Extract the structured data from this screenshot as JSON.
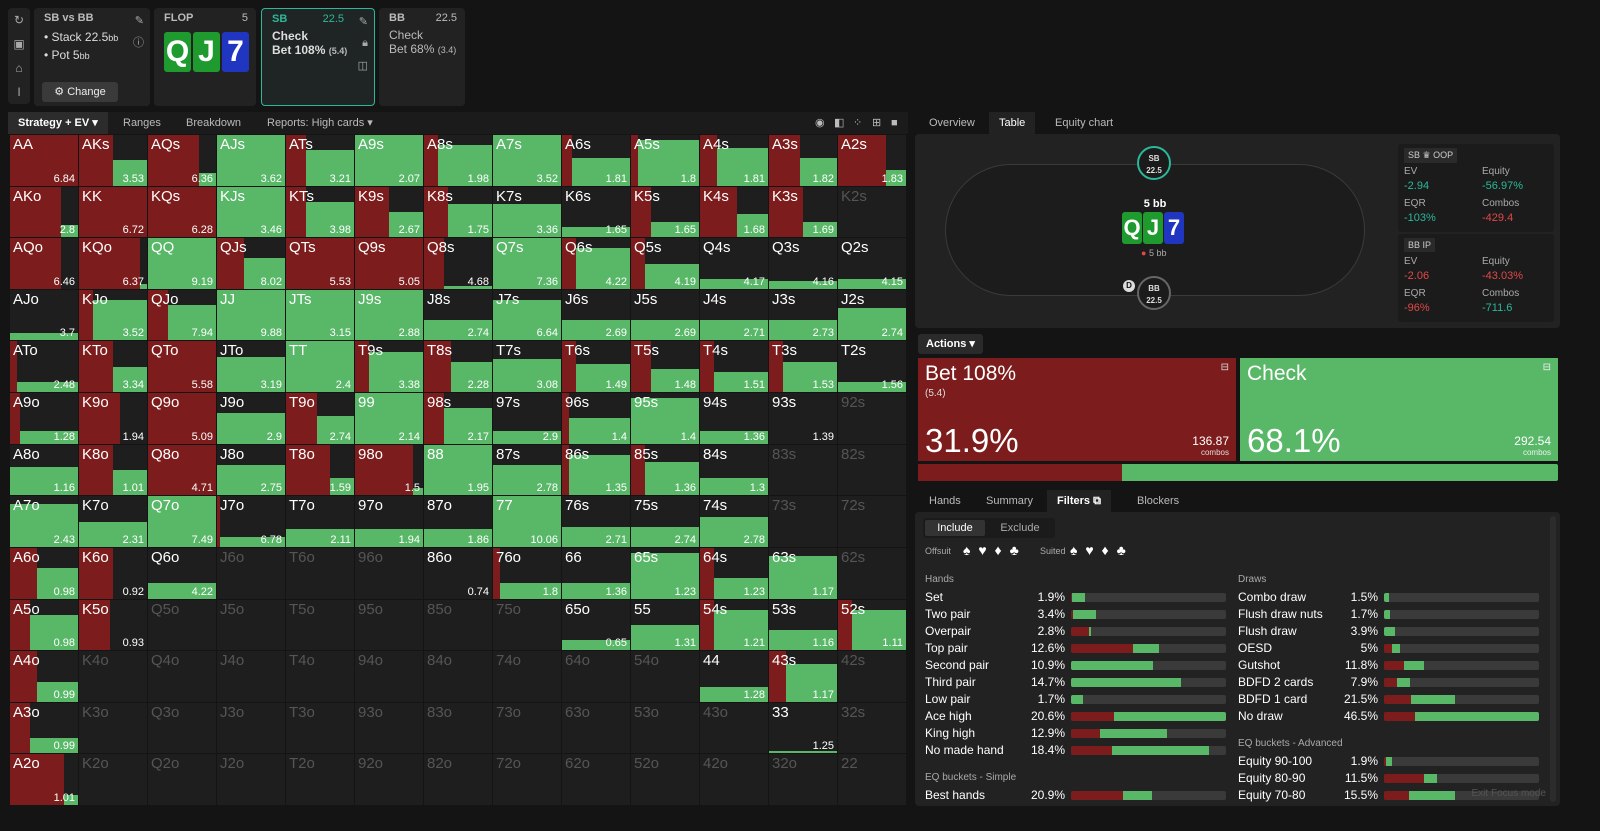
{
  "sidebar": {
    "icons": [
      "refresh-icon",
      "save-icon",
      "gamepad-icon",
      "format-icon"
    ]
  },
  "spot": {
    "title": "SB vs BB",
    "stack": "Stack 22.5",
    "stack_unit": "bb",
    "pot": "Pot 5",
    "pot_unit": "bb",
    "change": "Change"
  },
  "flop": {
    "title": "FLOP",
    "value": "5",
    "cards": [
      {
        "rank": "Q",
        "color": "#1e9a2e"
      },
      {
        "rank": "J",
        "color": "#1e9a2e"
      },
      {
        "rank": "7",
        "color": "#2036c0"
      }
    ]
  },
  "sb": {
    "title": "SB",
    "value": "22.5",
    "line1": "Check",
    "line2": "Bet 108%",
    "line2b": "(5.4)"
  },
  "bb": {
    "title": "BB",
    "value": "22.5",
    "line1": "Check",
    "line2": "Bet 68%",
    "line2b": "(3.4)"
  },
  "leftTabs": {
    "strategy": "Strategy + EV",
    "ranges": "Ranges",
    "breakdown": "Breakdown",
    "reports": "Reports: High cards"
  },
  "rightTabs": {
    "overview": "Overview",
    "table": "Table",
    "equity": "Equity chart"
  },
  "colors": {
    "bet": "#7d1c1c",
    "check": "#58b868",
    "empty": "#1e1e1e"
  },
  "grid": [
    [
      [
        "AA",
        1,
        0,
        "6.84"
      ],
      [
        "AKs",
        0.5,
        0.5,
        "3.53"
      ],
      [
        "AQs",
        0.75,
        0.25,
        "6.36"
      ],
      [
        "AJs",
        0,
        1,
        "3.62"
      ],
      [
        "ATs",
        0.3,
        0.7,
        "3.21"
      ],
      [
        "A9s",
        0,
        1,
        "2.07"
      ],
      [
        "A8s",
        0.2,
        0.8,
        "1.98"
      ],
      [
        "A7s",
        0,
        1,
        "3.52"
      ],
      [
        "A6s",
        0.15,
        0.55,
        "1.81"
      ],
      [
        "A5s",
        0.1,
        0.9,
        "1.8"
      ],
      [
        "A4s",
        0.25,
        0.75,
        "1.81"
      ],
      [
        "A3s",
        0.45,
        0.55,
        "1.82"
      ],
      [
        "A2s",
        0.7,
        0.3,
        "1.83"
      ]
    ],
    [
      [
        "AKo",
        0.75,
        0.25,
        "2.8"
      ],
      [
        "KK",
        1,
        0,
        "6.72"
      ],
      [
        "KQs",
        1,
        0,
        "6.28"
      ],
      [
        "KJs",
        0,
        1,
        "3.46"
      ],
      [
        "KTs",
        0.3,
        0.7,
        "3.98"
      ],
      [
        "K9s",
        0.5,
        0.5,
        "2.67"
      ],
      [
        "K8s",
        0.35,
        0.65,
        "1.75"
      ],
      [
        "K7s",
        0,
        0.65,
        "3.36"
      ],
      [
        "K6s",
        0,
        0.2,
        "1.65"
      ],
      [
        "K5s",
        0.3,
        0.3,
        "1.65"
      ],
      [
        "K4s",
        0.55,
        0.45,
        "1.68"
      ],
      [
        "K3s",
        0.5,
        0.3,
        "1.69"
      ],
      [
        "K2s",
        0,
        0,
        ""
      ]
    ],
    [
      [
        "AQo",
        0.75,
        0,
        "6.46"
      ],
      [
        "KQo",
        0.9,
        0.1,
        "6.37"
      ],
      [
        "QQ",
        0,
        1,
        "9.19"
      ],
      [
        "QJs",
        0.4,
        0.6,
        "8.02"
      ],
      [
        "QTs",
        1,
        0,
        "5.53"
      ],
      [
        "Q9s",
        1,
        0,
        "5.05"
      ],
      [
        "Q8s",
        0.3,
        0.05,
        "4.68"
      ],
      [
        "Q7s",
        0,
        1,
        "7.36"
      ],
      [
        "Q6s",
        0.2,
        0.8,
        "4.22"
      ],
      [
        "Q5s",
        0.2,
        0.5,
        "4.19"
      ],
      [
        "Q4s",
        0,
        0.2,
        "4.17"
      ],
      [
        "Q3s",
        0,
        0.15,
        "4.16"
      ],
      [
        "Q2s",
        0,
        0.2,
        "4.15"
      ]
    ],
    [
      [
        "AJo",
        0,
        0.15,
        "3.7"
      ],
      [
        "KJo",
        0.2,
        0.8,
        "3.52"
      ],
      [
        "QJo",
        0.3,
        0.7,
        "7.94"
      ],
      [
        "JJ",
        0,
        1,
        "9.88"
      ],
      [
        "JTs",
        0,
        1,
        "3.15"
      ],
      [
        "J9s",
        0,
        1,
        "2.88"
      ],
      [
        "J8s",
        0,
        0.4,
        "2.74"
      ],
      [
        "J7s",
        0,
        0.8,
        "6.64"
      ],
      [
        "J6s",
        0,
        0.4,
        "2.69"
      ],
      [
        "J5s",
        0,
        0.4,
        "2.69"
      ],
      [
        "J4s",
        0,
        0.4,
        "2.71"
      ],
      [
        "J3s",
        0,
        0.4,
        "2.73"
      ],
      [
        "J2s",
        0,
        0.65,
        "2.74"
      ]
    ],
    [
      [
        "ATo",
        0.1,
        0.2,
        "2.48"
      ],
      [
        "KTo",
        0.5,
        0.5,
        "3.34"
      ],
      [
        "QTo",
        1,
        0,
        "5.58"
      ],
      [
        "JTo",
        0,
        0.7,
        "3.19"
      ],
      [
        "TT",
        0,
        1,
        "2.4"
      ],
      [
        "T9s",
        0.2,
        0.8,
        "3.38"
      ],
      [
        "T8s",
        0.4,
        0.6,
        "2.28"
      ],
      [
        "T7s",
        0,
        0.65,
        "3.08"
      ],
      [
        "T6s",
        0.2,
        0.55,
        "1.49"
      ],
      [
        "T5s",
        0.3,
        0.45,
        "1.48"
      ],
      [
        "T4s",
        0.2,
        0.4,
        "1.51"
      ],
      [
        "T3s",
        0.2,
        0.6,
        "1.53"
      ],
      [
        "T2s",
        0,
        0.2,
        "1.56"
      ]
    ],
    [
      [
        "A9o",
        0.15,
        0.25,
        "1.28"
      ],
      [
        "K9o",
        0.6,
        0,
        "1.94"
      ],
      [
        "Q9o",
        1,
        0,
        "5.09"
      ],
      [
        "J9o",
        0,
        0.6,
        "2.9"
      ],
      [
        "T9o",
        0.45,
        0.55,
        "2.74"
      ],
      [
        "99",
        0,
        1,
        "2.14"
      ],
      [
        "98s",
        0.3,
        0.7,
        "2.17"
      ],
      [
        "97s",
        0,
        0.25,
        "2.9"
      ],
      [
        "96s",
        0.1,
        0.5,
        "1.4"
      ],
      [
        "95s",
        0,
        0.9,
        "1.4"
      ],
      [
        "94s",
        0,
        0.25,
        "1.36"
      ],
      [
        "93s",
        0,
        0,
        "1.39"
      ],
      [
        "92s",
        0,
        0,
        ""
      ]
    ],
    [
      [
        "A8o",
        0,
        0.55,
        "1.16"
      ],
      [
        "K8o",
        0.5,
        0.5,
        "1.01"
      ],
      [
        "Q8o",
        1,
        0,
        "4.71"
      ],
      [
        "J8o",
        0,
        0.6,
        "2.75"
      ],
      [
        "T8o",
        0.65,
        0.35,
        "1.59"
      ],
      [
        "98o",
        0.85,
        0.15,
        "1.5"
      ],
      [
        "88",
        0,
        1,
        "1.95"
      ],
      [
        "87s",
        0,
        0.6,
        "2.78"
      ],
      [
        "86s",
        0.1,
        0.8,
        "1.35"
      ],
      [
        "85s",
        0.2,
        0.65,
        "1.36"
      ],
      [
        "84s",
        0,
        0.35,
        "1.3"
      ],
      [
        "83s",
        0,
        0,
        ""
      ],
      [
        "82s",
        0,
        0,
        ""
      ]
    ],
    [
      [
        "A7o",
        0,
        0.85,
        "2.43"
      ],
      [
        "K7o",
        0,
        0.5,
        "2.31"
      ],
      [
        "Q7o",
        0,
        1,
        "7.49"
      ],
      [
        "J7o",
        0.05,
        0.2,
        "6.78"
      ],
      [
        "T7o",
        0,
        0.35,
        "2.11"
      ],
      [
        "97o",
        0,
        0.35,
        "1.94"
      ],
      [
        "87o",
        0,
        0.35,
        "1.86"
      ],
      [
        "77",
        0,
        1,
        "10.06"
      ],
      [
        "76s",
        0,
        0.4,
        "2.71"
      ],
      [
        "75s",
        0,
        0.4,
        "2.74"
      ],
      [
        "74s",
        0,
        0.6,
        "2.78"
      ],
      [
        "73s",
        0,
        0,
        ""
      ],
      [
        "72s",
        0,
        0,
        ""
      ]
    ],
    [
      [
        "A6o",
        0.4,
        0.6,
        "0.98"
      ],
      [
        "K6o",
        0.5,
        0,
        "0.92"
      ],
      [
        "Q6o",
        0,
        0.3,
        "4.22"
      ],
      [
        "J6o",
        0,
        0,
        ""
      ],
      [
        "T6o",
        0,
        0,
        ""
      ],
      [
        "96o",
        0,
        0,
        ""
      ],
      [
        "86o",
        0,
        0,
        "0.74"
      ],
      [
        "76o",
        0.1,
        0.3,
        "1.8"
      ],
      [
        "66",
        0,
        0.3,
        "1.36"
      ],
      [
        "65s",
        0,
        0.9,
        "1.23"
      ],
      [
        "64s",
        0.2,
        0.4,
        "1.23"
      ],
      [
        "63s",
        0,
        0.85,
        "1.17"
      ],
      [
        "62s",
        0,
        0,
        ""
      ]
    ],
    [
      [
        "A5o",
        0.3,
        0.7,
        "0.98"
      ],
      [
        "K5o",
        0.45,
        0,
        "0.93"
      ],
      [
        "Q5o",
        0,
        0,
        ""
      ],
      [
        "J5o",
        0,
        0,
        ""
      ],
      [
        "T5o",
        0,
        0,
        ""
      ],
      [
        "95o",
        0,
        0,
        ""
      ],
      [
        "85o",
        0,
        0,
        ""
      ],
      [
        "75o",
        0,
        0,
        ""
      ],
      [
        "65o",
        0,
        0.2,
        "0.65"
      ],
      [
        "55",
        0,
        0.5,
        "1.31"
      ],
      [
        "54s",
        0.2,
        0.8,
        "1.21"
      ],
      [
        "53s",
        0,
        0.4,
        "1.16"
      ],
      [
        "52s",
        0.2,
        0.8,
        "1.11"
      ]
    ],
    [
      [
        "A4o",
        0.4,
        0.4,
        "0.99"
      ],
      [
        "K4o",
        0,
        0,
        ""
      ],
      [
        "Q4o",
        0,
        0,
        ""
      ],
      [
        "J4o",
        0,
        0,
        ""
      ],
      [
        "T4o",
        0,
        0,
        ""
      ],
      [
        "94o",
        0,
        0,
        ""
      ],
      [
        "84o",
        0,
        0,
        ""
      ],
      [
        "74o",
        0,
        0,
        ""
      ],
      [
        "64o",
        0,
        0,
        ""
      ],
      [
        "54o",
        0,
        0,
        ""
      ],
      [
        "44",
        0,
        0.3,
        "1.28"
      ],
      [
        "43s",
        0.25,
        0.75,
        "1.17"
      ],
      [
        "42s",
        0,
        0,
        ""
      ]
    ],
    [
      [
        "A3o",
        0.3,
        0.3,
        "0.99"
      ],
      [
        "K3o",
        0,
        0,
        ""
      ],
      [
        "Q3o",
        0,
        0,
        ""
      ],
      [
        "J3o",
        0,
        0,
        ""
      ],
      [
        "T3o",
        0,
        0,
        ""
      ],
      [
        "93o",
        0,
        0,
        ""
      ],
      [
        "83o",
        0,
        0,
        ""
      ],
      [
        "73o",
        0,
        0,
        ""
      ],
      [
        "63o",
        0,
        0,
        ""
      ],
      [
        "53o",
        0,
        0,
        ""
      ],
      [
        "43o",
        0,
        0,
        ""
      ],
      [
        "33",
        0,
        0.05,
        "1.25"
      ],
      [
        "32s",
        0,
        0,
        ""
      ]
    ],
    [
      [
        "A2o",
        0.8,
        0.2,
        "1.01"
      ],
      [
        "K2o",
        0,
        0,
        ""
      ],
      [
        "Q2o",
        0,
        0,
        ""
      ],
      [
        "J2o",
        0,
        0,
        ""
      ],
      [
        "T2o",
        0,
        0,
        ""
      ],
      [
        "92o",
        0,
        0,
        ""
      ],
      [
        "82o",
        0,
        0,
        ""
      ],
      [
        "72o",
        0,
        0,
        ""
      ],
      [
        "62o",
        0,
        0,
        ""
      ],
      [
        "52o",
        0,
        0,
        ""
      ],
      [
        "42o",
        0,
        0,
        ""
      ],
      [
        "32o",
        0,
        0,
        ""
      ],
      [
        "22",
        0,
        0,
        ""
      ]
    ]
  ],
  "table": {
    "sb_label": "SB",
    "sb_stack": "22.5",
    "bb_label": "BB",
    "bb_stack": "22.5",
    "pot": "5 bb",
    "pot_small": "5 bb",
    "dealer": "D"
  },
  "oop": {
    "title": "SB",
    "tag": "OOP",
    "ev_label": "EV",
    "ev": "-2.94",
    "eq_label": "Equity",
    "eq": "-56.97%",
    "eqr_label": "EQR",
    "eqr": "-103%",
    "combos_label": "Combos",
    "combos": "-429.4"
  },
  "ip": {
    "title": "BB",
    "tag": "IP",
    "ev_label": "EV",
    "ev": "-2.06",
    "eq_label": "Equity",
    "eq": "-43.03%",
    "eqr_label": "EQR",
    "eqr": "-96%",
    "combos_label": "Combos",
    "combos": "-711.6"
  },
  "actions": {
    "label": "Actions",
    "bet_title": "Bet 108%",
    "bet_sub": "(5.4)",
    "bet_pct": "31.9%",
    "bet_combos": "136.87",
    "bet_combos_label": "combos",
    "check_title": "Check",
    "check_pct": "68.1%",
    "check_combos": "292.54",
    "check_combos_label": "combos",
    "bet_frac": 0.319
  },
  "bottomTabs": {
    "hands": "Hands",
    "summary": "Summary",
    "filters": "Filters",
    "blockers": "Blockers"
  },
  "filters": {
    "include": "Include",
    "exclude": "Exclude",
    "offsuit": "Offsuit",
    "suited": "Suited",
    "suits": "♠ ♥ ♦ ♣"
  },
  "hands": {
    "title": "Hands",
    "rows": [
      [
        "Set",
        "1.9%",
        0.1,
        0.9
      ],
      [
        "Two pair",
        "3.4%",
        0.1,
        0.9
      ],
      [
        "Overpair",
        "2.8%",
        0.9,
        0.1
      ],
      [
        "Top pair",
        "12.6%",
        0.7,
        0.3
      ],
      [
        "Second pair",
        "10.9%",
        0,
        1
      ],
      [
        "Third pair",
        "14.7%",
        0,
        1
      ],
      [
        "Low pair",
        "1.7%",
        0,
        1
      ],
      [
        "Ace high",
        "20.6%",
        0.28,
        0.72
      ],
      [
        "King high",
        "12.9%",
        0.3,
        0.7
      ],
      [
        "No made hand",
        "18.4%",
        0.3,
        0.7
      ]
    ],
    "fills": [
      0.09,
      0.16,
      0.13,
      0.57,
      0.53,
      0.71,
      0.08,
      1.0,
      0.62,
      0.89
    ]
  },
  "draws": {
    "title": "Draws",
    "rows": [
      [
        "Combo draw",
        "1.5%",
        0,
        1
      ],
      [
        "Flush draw nuts",
        "1.7%",
        0,
        1
      ],
      [
        "Flush draw",
        "3.9%",
        0,
        1
      ],
      [
        "OESD",
        "5%",
        0.5,
        0.5
      ],
      [
        "Gutshot",
        "11.8%",
        0.5,
        0.5
      ],
      [
        "BDFD 2 cards",
        "7.9%",
        0.5,
        0.5
      ],
      [
        "BDFD 1 card",
        "21.5%",
        0.38,
        0.62
      ],
      [
        "No draw",
        "46.5%",
        0.2,
        0.8
      ]
    ],
    "fills": [
      0.03,
      0.04,
      0.07,
      0.1,
      0.26,
      0.17,
      0.46,
      1.0
    ]
  },
  "eqSimple": {
    "title": "EQ buckets - Simple",
    "rows": [
      [
        "Best hands",
        "20.9%",
        0.65,
        0.35
      ]
    ],
    "fills": [
      0.52
    ]
  },
  "eqAdv": {
    "title": "EQ buckets - Advanced",
    "rows": [
      [
        "Equity 90-100",
        "1.9%",
        0.2,
        0.8
      ],
      [
        "Equity 80-90",
        "11.5%",
        0.75,
        0.25
      ],
      [
        "Equity 70-80",
        "15.5%",
        0.35,
        0.65
      ]
    ],
    "fills": [
      0.05,
      0.34,
      0.46
    ]
  },
  "exit": "Exit Focus mode"
}
